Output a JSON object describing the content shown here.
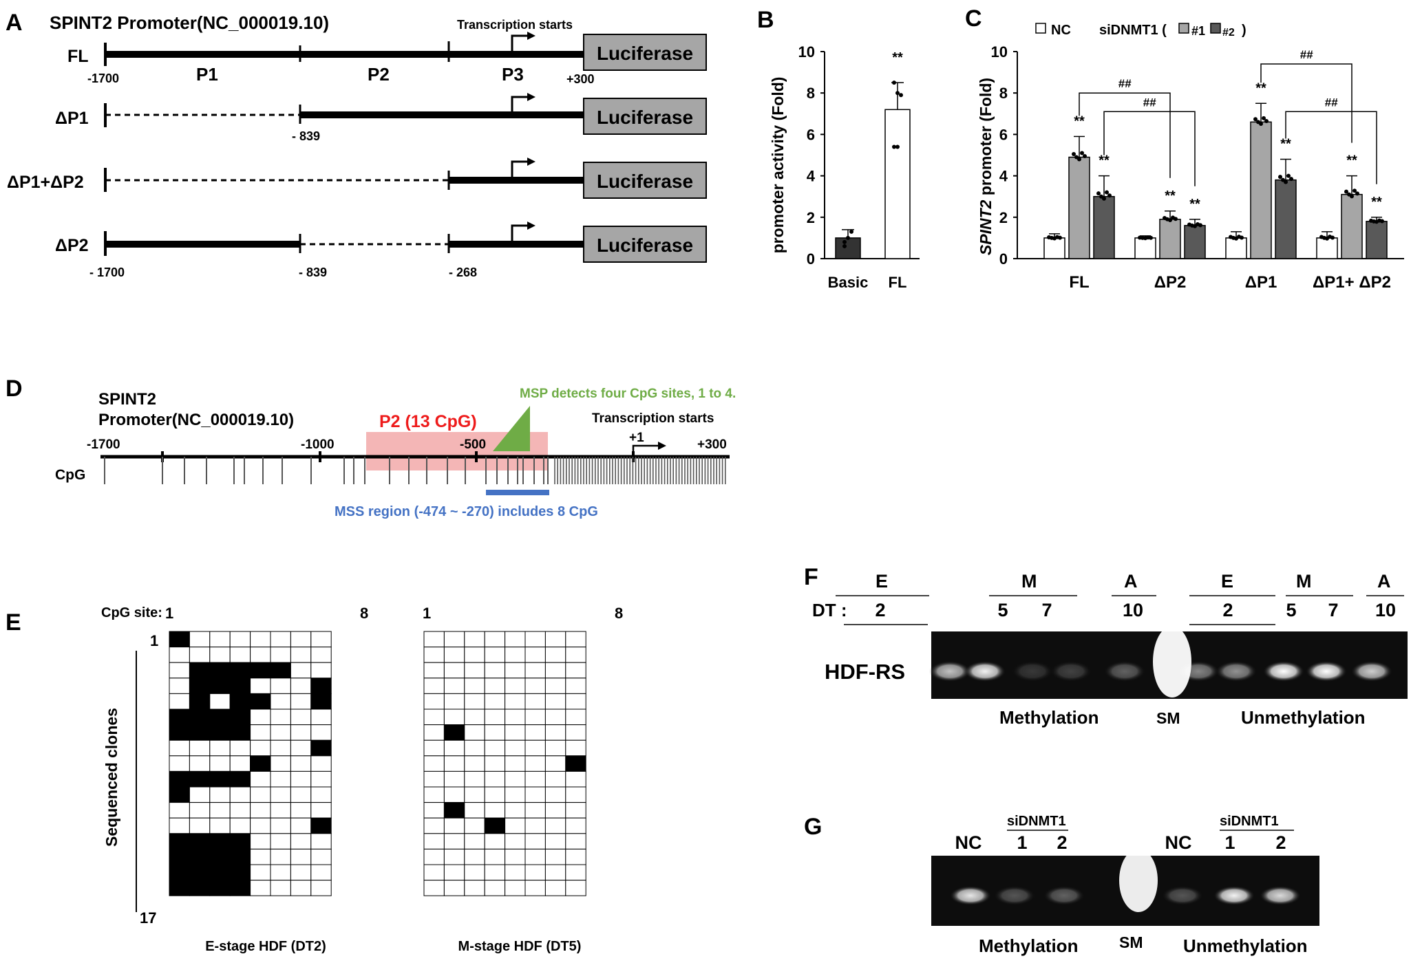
{
  "panelA": {
    "letter": "A",
    "title": "SPINT2 Promoter(NC_000019.10)",
    "tss_label": "Transcription starts",
    "reporter": "Luciferase",
    "constructs": [
      {
        "name": "FL"
      },
      {
        "name": "ΔP1"
      },
      {
        "name": "ΔP1+ΔP2"
      },
      {
        "name": "ΔP2"
      }
    ],
    "region_labels": [
      "P1",
      "P2",
      "P3"
    ],
    "positions": {
      "fl_start": "-1700",
      "fl_end": "+300",
      "dp1_start": "- 839",
      "dp2_a": "- 1700",
      "dp2_b": "- 839",
      "dp2_c": "- 268"
    }
  },
  "panelB": {
    "letter": "B",
    "ylabel": "promoter activity (Fold)",
    "significance": "**",
    "yticks": [
      "0",
      "2",
      "4",
      "6",
      "8",
      "10"
    ],
    "chart_data": {
      "type": "bar",
      "categories": [
        "Basic",
        "FL"
      ],
      "values": [
        1.0,
        7.2
      ],
      "errors": [
        0.4,
        1.3
      ],
      "points": [
        [
          0.6,
          1.0,
          1.3,
          0.8
        ],
        [
          5.4,
          5.4,
          7.9,
          8.5,
          8.0
        ]
      ],
      "bar_colors": [
        "#333333",
        "#ffffff"
      ],
      "ylim": [
        0,
        10
      ],
      "ylabel": "promoter activity (Fold)"
    }
  },
  "panelC": {
    "letter": "C",
    "ylabel_italic": "SPINT2",
    "ylabel_rest": " promoter (Fold)",
    "legend": {
      "nc": "NC",
      "prefix": "siDNMT1 (",
      "s1": "#1",
      "s2": "#2",
      "suffix": ")"
    },
    "yticks": [
      "0",
      "2",
      "4",
      "6",
      "8",
      "10"
    ],
    "sig": "**",
    "hash": "##",
    "chart_data": {
      "type": "bar",
      "categories": [
        "FL",
        "ΔP2",
        "ΔP1",
        "ΔP1+ ΔP2"
      ],
      "series": [
        {
          "name": "NC",
          "color": "#ffffff",
          "values": [
            1.0,
            1.0,
            1.0,
            1.0
          ],
          "errors": [
            0.2,
            0.1,
            0.3,
            0.3
          ]
        },
        {
          "name": "#1",
          "color": "#a6a6a6",
          "values": [
            4.9,
            1.9,
            6.6,
            3.1
          ],
          "errors": [
            1.0,
            0.4,
            0.9,
            0.9
          ]
        },
        {
          "name": "#2",
          "color": "#595959",
          "values": [
            3.0,
            1.6,
            3.8,
            1.8
          ],
          "errors": [
            1.0,
            0.3,
            1.0,
            0.2
          ]
        }
      ],
      "ylim": [
        0,
        10
      ],
      "ylabel": "SPINT2 promoter (Fold)"
    }
  },
  "panelD": {
    "letter": "D",
    "title_line1": "SPINT2",
    "title_line2": "Promoter(NC_000019.10)",
    "p2_label": "P2 (13 CpG)",
    "msp_label": "MSP  detects four CpG sites, 1 to 4.",
    "tss_label": "Transcription starts",
    "ticks": [
      "-1700",
      "-1000",
      "-500",
      "+300"
    ],
    "plus_one": "+1",
    "cpg_label": "CpG",
    "mss_label": "MSS region (-474 ~ -270) includes 8 CpG",
    "colors": {
      "p2": "#f4b6b6",
      "p2_text": "#ee1c1c",
      "msp": "#6fac46",
      "mss": "#4472c4"
    }
  },
  "panelE": {
    "letter": "E",
    "cpg_site_label": "CpG site:",
    "col_first": "1",
    "col_last": "8",
    "row_first": "1",
    "row_last": "17",
    "side_label": "Sequenced clones",
    "left_caption": "E-stage HDF (DT2)",
    "right_caption": "M-stage HDF (DT5)",
    "left_grid": [
      "10000000",
      "00000000",
      "01111100",
      "01110001",
      "01011001",
      "11110000",
      "11110000",
      "00000001",
      "00001000",
      "11110000",
      "10000000",
      "00000000",
      "00000001",
      "11110000",
      "11110000",
      "11110000",
      "11110000"
    ],
    "right_grid": [
      "00000000",
      "00000000",
      "00000000",
      "00000000",
      "00000000",
      "00000000",
      "01000000",
      "00000000",
      "00000001",
      "00000000",
      "00000000",
      "01000000",
      "00010000",
      "00000000",
      "00000000",
      "00000000",
      "00000000"
    ]
  },
  "panelF": {
    "letter": "F",
    "dt_label": "DT :",
    "stages": [
      "E",
      "M",
      "A",
      "E",
      "M",
      "A"
    ],
    "lanes": [
      "2",
      "5",
      "7",
      "10",
      "2",
      "5",
      "7",
      "10"
    ],
    "sample": "HDF-RS",
    "meth": "Methylation",
    "sm": "SM",
    "unmeth": "Unmethylation"
  },
  "panelG": {
    "letter": "G",
    "group": "siDNMT1",
    "nc": "NC",
    "lane1": "1",
    "lane2": "2",
    "meth": "Methylation",
    "sm": "SM",
    "unmeth": "Unmethylation"
  }
}
